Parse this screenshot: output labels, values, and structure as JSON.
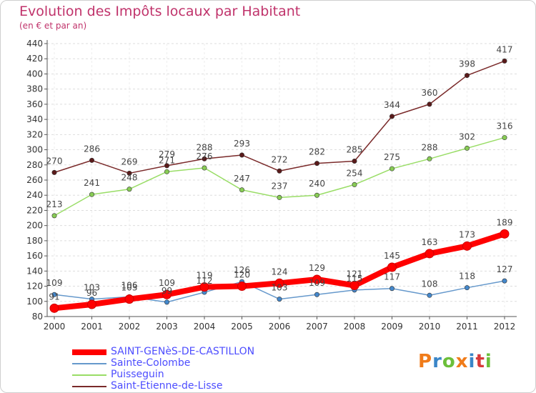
{
  "title": "Evolution des Impôts locaux par Habitant",
  "subtitle": "(en € et par an)",
  "logo": {
    "text": "Proxiti"
  },
  "colors": {
    "title": "#c0336b",
    "legend_text": "#4d4dff",
    "grid": "#dddddd"
  },
  "chart_data": {
    "type": "line",
    "title": "Evolution des Impôts locaux par Habitant",
    "subtitle": "(en € et par an)",
    "xlabel": "",
    "ylabel": "",
    "x": [
      "2000",
      "2001",
      "2002",
      "2003",
      "2004",
      "2005",
      "2006",
      "2007",
      "2008",
      "2009",
      "2010",
      "2011",
      "2012"
    ],
    "ylim": [
      80,
      440
    ],
    "yticks": [
      80,
      100,
      120,
      140,
      160,
      180,
      200,
      220,
      240,
      260,
      280,
      300,
      320,
      340,
      360,
      380,
      400,
      420,
      440
    ],
    "grid": "horizontal dashed",
    "legend_position": "bottom-left",
    "series": [
      {
        "name": "SAINT-GENèS-DE-CASTILLON",
        "color": "#ff0000",
        "width": 8,
        "marker": "#ff0000",
        "labels": true,
        "values": [
          91,
          96,
          103,
          109,
          119,
          120,
          124,
          129,
          121,
          145,
          163,
          173,
          189
        ]
      },
      {
        "name": "Sainte-Colombe",
        "color": "#6699cc",
        "width": 1.5,
        "marker": "#4488cc",
        "labels": true,
        "values": [
          109,
          103,
          106,
          99,
          112,
          126,
          103,
          109,
          115,
          117,
          108,
          118,
          127
        ]
      },
      {
        "name": "Puisseguin",
        "color": "#99dd66",
        "width": 1.5,
        "marker": "#88cc55",
        "labels": true,
        "values": [
          213,
          241,
          248,
          271,
          276,
          247,
          237,
          240,
          254,
          275,
          288,
          302,
          316
        ]
      },
      {
        "name": "Saint-Etienne-de-Lisse",
        "color": "#7a2a2a",
        "width": 1.5,
        "marker": "#5a1a1a",
        "labels": true,
        "values": [
          270,
          286,
          269,
          279,
          288,
          293,
          272,
          282,
          285,
          344,
          360,
          398,
          417
        ]
      }
    ],
    "value_labels": {
      "SAINT-GENèS-DE-CASTILLON": [
        "91",
        "96",
        "103",
        "109",
        "119",
        "120",
        "124",
        "129",
        "121",
        "145",
        "163",
        "173",
        "189"
      ],
      "Sainte-Colombe": [
        "109",
        "103",
        "106",
        "99",
        "112",
        "126",
        "103",
        "109",
        "115",
        "117",
        "108",
        "118",
        "127"
      ],
      "Puisseguin": [
        "213",
        "241",
        "248",
        "271",
        "276",
        "247",
        "237",
        "240",
        "254",
        "275",
        "288",
        "302",
        "316"
      ],
      "Saint-Etienne-de-Lisse": [
        "270",
        "286",
        "269",
        "279",
        "288",
        "293",
        "272",
        "282",
        "285",
        "344",
        "360",
        "398",
        "417"
      ]
    }
  }
}
